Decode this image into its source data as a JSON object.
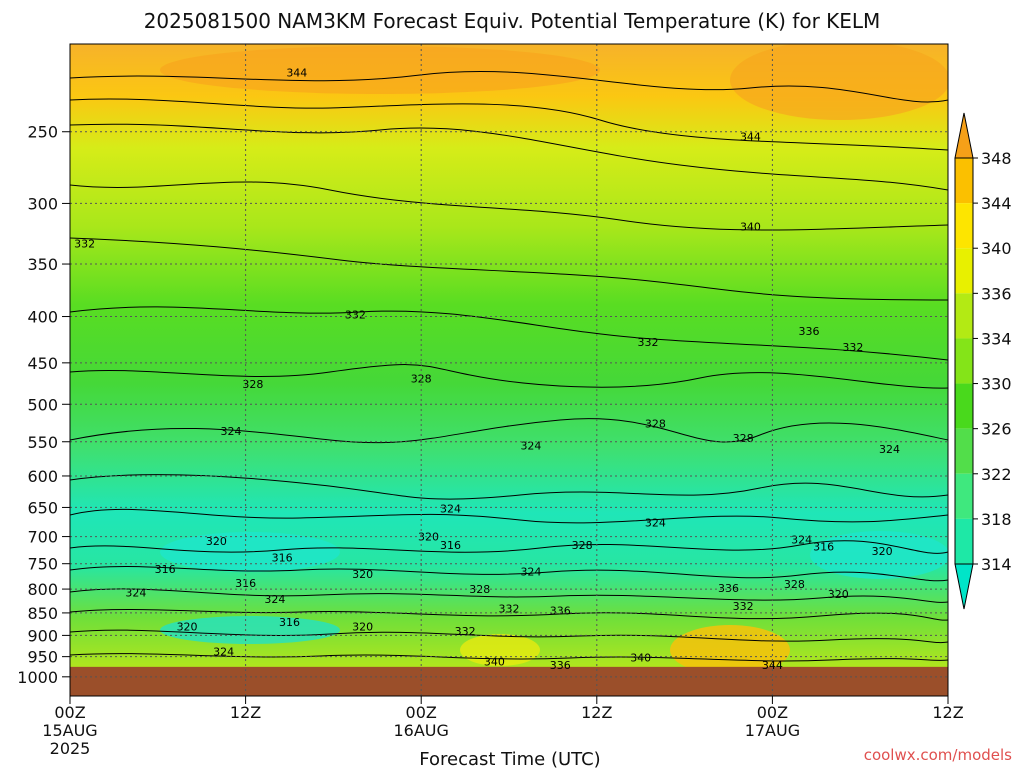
{
  "chart_data": {
    "type": "heatmap",
    "title": "2025081500 NAM3KM Forecast Equiv. Potential Temperature (K) for KELM",
    "xlabel": "Forecast Time (UTC)",
    "ylabel": "",
    "credit": "coolwx.com/models",
    "x_ticks": [
      {
        "hour": 0,
        "label": "00Z",
        "sub": "15AUG",
        "sub2": "2025"
      },
      {
        "hour": 12,
        "label": "12Z",
        "sub": "",
        "sub2": ""
      },
      {
        "hour": 24,
        "label": "00Z",
        "sub": "16AUG",
        "sub2": ""
      },
      {
        "hour": 36,
        "label": "12Z",
        "sub": "",
        "sub2": ""
      },
      {
        "hour": 48,
        "label": "00Z",
        "sub": "17AUG",
        "sub2": ""
      },
      {
        "hour": 60,
        "label": "12Z",
        "sub": "",
        "sub2": ""
      }
    ],
    "xlim": [
      0,
      60
    ],
    "y_scale": "log",
    "ylim": [
      1050,
      200
    ],
    "y_ticks": [
      250,
      300,
      350,
      400,
      450,
      500,
      550,
      600,
      650,
      700,
      750,
      800,
      850,
      900,
      950,
      1000
    ],
    "colorbar": {
      "levels": [
        314,
        318,
        322,
        326,
        330,
        334,
        336,
        340,
        344,
        348
      ],
      "colors": [
        "#00e5c8",
        "#1ee8a6",
        "#3fe87e",
        "#52de4a",
        "#49d91c",
        "#84e418",
        "#b3ea14",
        "#e8f000",
        "#fde500",
        "#fbc000",
        "#f6a018"
      ],
      "extend": "both"
    },
    "surface_color": "#9b4f2a",
    "surface_pressure": 975,
    "grid": true,
    "contour_labels": [
      {
        "t": 15.5,
        "p": 215,
        "v": "344"
      },
      {
        "t": 46.5,
        "p": 253,
        "v": "344"
      },
      {
        "t": 1.0,
        "p": 332,
        "v": "332"
      },
      {
        "t": 46.5,
        "p": 318,
        "v": "340"
      },
      {
        "t": 19.5,
        "p": 398,
        "v": "332"
      },
      {
        "t": 50.5,
        "p": 415,
        "v": "336"
      },
      {
        "t": 39.5,
        "p": 427,
        "v": "332"
      },
      {
        "t": 53.5,
        "p": 432,
        "v": "332"
      },
      {
        "t": 12.5,
        "p": 475,
        "v": "328"
      },
      {
        "t": 24.0,
        "p": 468,
        "v": "328"
      },
      {
        "t": 40.0,
        "p": 525,
        "v": "328"
      },
      {
        "t": 46.0,
        "p": 545,
        "v": "328"
      },
      {
        "t": 11.0,
        "p": 535,
        "v": "324"
      },
      {
        "t": 31.5,
        "p": 555,
        "v": "324"
      },
      {
        "t": 56.0,
        "p": 560,
        "v": "324"
      },
      {
        "t": 26.0,
        "p": 652,
        "v": "324"
      },
      {
        "t": 40.0,
        "p": 675,
        "v": "324"
      },
      {
        "t": 50.0,
        "p": 705,
        "v": "324"
      },
      {
        "t": 10.0,
        "p": 708,
        "v": "320"
      },
      {
        "t": 24.5,
        "p": 700,
        "v": "320"
      },
      {
        "t": 26.0,
        "p": 715,
        "v": "316"
      },
      {
        "t": 35.0,
        "p": 715,
        "v": "328"
      },
      {
        "t": 51.5,
        "p": 718,
        "v": "316"
      },
      {
        "t": 55.5,
        "p": 726,
        "v": "320"
      },
      {
        "t": 14.5,
        "p": 738,
        "v": "316"
      },
      {
        "t": 6.5,
        "p": 760,
        "v": "316"
      },
      {
        "t": 20.0,
        "p": 770,
        "v": "320"
      },
      {
        "t": 31.5,
        "p": 765,
        "v": "324"
      },
      {
        "t": 12.0,
        "p": 788,
        "v": "316"
      },
      {
        "t": 4.5,
        "p": 807,
        "v": "324"
      },
      {
        "t": 14.0,
        "p": 820,
        "v": "324"
      },
      {
        "t": 28.0,
        "p": 800,
        "v": "328"
      },
      {
        "t": 45.0,
        "p": 798,
        "v": "336"
      },
      {
        "t": 49.5,
        "p": 790,
        "v": "328"
      },
      {
        "t": 52.5,
        "p": 810,
        "v": "320"
      },
      {
        "t": 30.0,
        "p": 840,
        "v": "332"
      },
      {
        "t": 33.5,
        "p": 845,
        "v": "336"
      },
      {
        "t": 46.0,
        "p": 835,
        "v": "332"
      },
      {
        "t": 15.0,
        "p": 870,
        "v": "316"
      },
      {
        "t": 8.0,
        "p": 880,
        "v": "320"
      },
      {
        "t": 20.0,
        "p": 880,
        "v": "320"
      },
      {
        "t": 27.0,
        "p": 890,
        "v": "332"
      },
      {
        "t": 29.0,
        "p": 962,
        "v": "340"
      },
      {
        "t": 33.5,
        "p": 970,
        "v": "336"
      },
      {
        "t": 39.0,
        "p": 952,
        "v": "340"
      },
      {
        "t": 48.0,
        "p": 970,
        "v": "344"
      },
      {
        "t": 10.5,
        "p": 938,
        "v": "324"
      }
    ]
  }
}
